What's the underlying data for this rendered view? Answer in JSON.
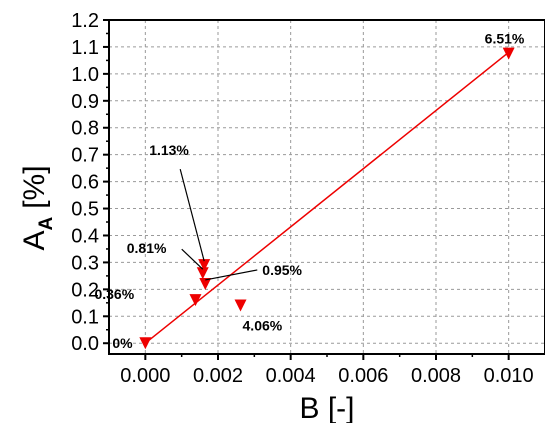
{
  "chart_data": {
    "type": "scatter",
    "xlabel": "B [-]",
    "ylabel": {
      "main": "A",
      "sub": "A",
      "unit": "[%]"
    },
    "xlim": [
      -0.001,
      0.011
    ],
    "ylim": [
      -0.04,
      1.2
    ],
    "xticks": [
      "0.000",
      "0.002",
      "0.004",
      "0.006",
      "0.008",
      "0.010"
    ],
    "xtick_values": [
      0,
      0.002,
      0.004,
      0.006,
      0.008,
      0.01
    ],
    "yticks": [
      "0.0",
      "0.1",
      "0.2",
      "0.3",
      "0.4",
      "0.5",
      "0.6",
      "0.7",
      "0.8",
      "0.9",
      "1.0",
      "1.1",
      "1.2"
    ],
    "ytick_values": [
      0,
      0.1,
      0.2,
      0.3,
      0.4,
      0.5,
      0.6,
      0.7,
      0.8,
      0.9,
      1.0,
      1.1,
      1.2
    ],
    "grid": true,
    "marker": "triangle-down",
    "color": "#ee0000",
    "points": [
      {
        "x": 0.0,
        "y": 0.0,
        "label": "0%"
      },
      {
        "x": 0.00138,
        "y": 0.16,
        "label": "0.36%"
      },
      {
        "x": 0.00158,
        "y": 0.26,
        "label": "0.81%"
      },
      {
        "x": 0.00165,
        "y": 0.22,
        "label": "0.95%"
      },
      {
        "x": 0.00162,
        "y": 0.29,
        "label": "1.13%"
      },
      {
        "x": 0.00262,
        "y": 0.14,
        "label": "4.06%"
      },
      {
        "x": 0.01,
        "y": 1.075,
        "label": "6.51%"
      }
    ],
    "fit_line": {
      "x": [
        0.0,
        0.01
      ],
      "y": [
        0.0,
        1.08
      ]
    }
  }
}
